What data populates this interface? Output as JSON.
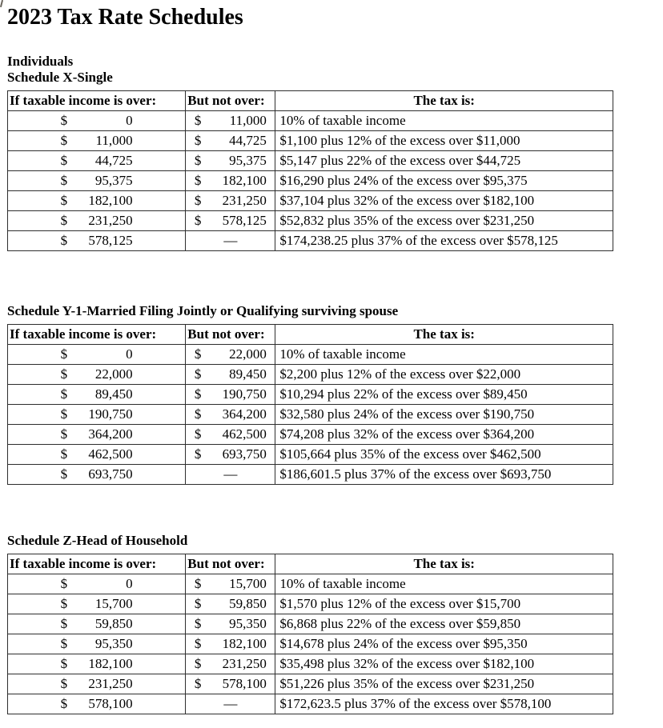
{
  "page": {
    "title": "2023 Tax Rate Schedules",
    "group_label": "Individuals"
  },
  "colors": {
    "background": "#ffffff",
    "text": "#000000",
    "table_border": "#2e2e2e"
  },
  "table_headers": {
    "over": "If taxable income is over:",
    "not_over": "But not over:",
    "tax": "The tax is:"
  },
  "schedules": [
    {
      "heading": "Schedule X-Single",
      "rows": [
        {
          "over": "$ 0",
          "not_over": "$ 11,000",
          "tax": "10% of taxable income"
        },
        {
          "over": "$ 11,000",
          "not_over": "$ 44,725",
          "tax": "$1,100 plus 12% of the excess over $11,000"
        },
        {
          "over": "$ 44,725",
          "not_over": "$ 95,375",
          "tax": "$5,147 plus 22% of the excess over $44,725"
        },
        {
          "over": "$ 95,375",
          "not_over": "$ 182,100",
          "tax": "$16,290 plus 24% of the excess over $95,375"
        },
        {
          "over": "$ 182,100",
          "not_over": "$ 231,250",
          "tax": "$37,104 plus 32% of the excess over $182,100"
        },
        {
          "over": "$ 231,250",
          "not_over": "$ 578,125",
          "tax": "$52,832 plus 35% of the excess over $231,250"
        },
        {
          "over": "$ 578,125",
          "not_over": "—",
          "tax": "$174,238.25 plus 37% of the excess over $578,125"
        }
      ]
    },
    {
      "heading": "Schedule Y-1-Married Filing Jointly or Qualifying surviving spouse",
      "rows": [
        {
          "over": "$ 0",
          "not_over": "$ 22,000",
          "tax": "10% of taxable income"
        },
        {
          "over": "$ 22,000",
          "not_over": "$ 89,450",
          "tax": "$2,200 plus 12% of the excess over $22,000"
        },
        {
          "over": "$ 89,450",
          "not_over": "$ 190,750",
          "tax": "$10,294 plus 22% of the excess over $89,450"
        },
        {
          "over": "$ 190,750",
          "not_over": "$ 364,200",
          "tax": "$32,580 plus 24% of the excess over $190,750"
        },
        {
          "over": "$ 364,200",
          "not_over": "$ 462,500",
          "tax": "$74,208 plus 32% of the excess over $364,200"
        },
        {
          "over": "$ 462,500",
          "not_over": "$ 693,750",
          "tax": "$105,664 plus 35% of the excess over $462,500"
        },
        {
          "over": "$ 693,750",
          "not_over": "—",
          "tax": "$186,601.5 plus 37% of the excess over $693,750"
        }
      ]
    },
    {
      "heading": "Schedule Z-Head of Household",
      "rows": [
        {
          "over": "$ 0",
          "not_over": "$ 15,700",
          "tax": "10% of taxable income"
        },
        {
          "over": "$ 15,700",
          "not_over": "$ 59,850",
          "tax": "$1,570 plus 12% of the excess over $15,700"
        },
        {
          "over": "$ 59,850",
          "not_over": "$ 95,350",
          "tax": "$6,868 plus 22% of the excess over $59,850"
        },
        {
          "over": "$ 95,350",
          "not_over": "$ 182,100",
          "tax": "$14,678 plus 24% of the excess over $95,350"
        },
        {
          "over": "$ 182,100",
          "not_over": "$ 231,250",
          "tax": "$35,498 plus 32% of the excess over $182,100"
        },
        {
          "over": "$ 231,250",
          "not_over": "$ 578,100",
          "tax": "$51,226 plus 35% of the excess over $231,250"
        },
        {
          "over": "$ 578,100",
          "not_over": "—",
          "tax": "$172,623.5 plus 37% of the excess over $578,100"
        }
      ]
    }
  ]
}
